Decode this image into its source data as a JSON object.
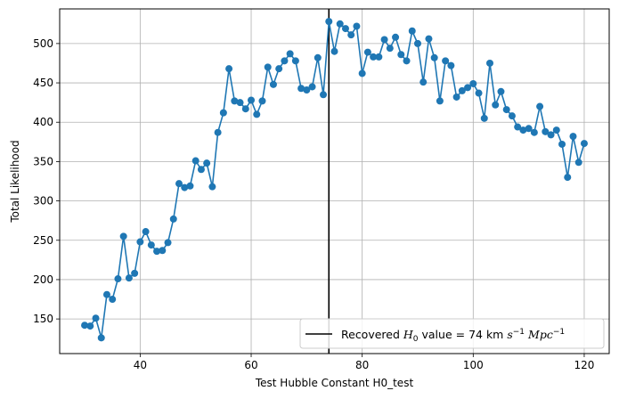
{
  "colors": {
    "series": "#1f77b4",
    "vline": "#000000",
    "grid": "#b0b0b0",
    "background": "#ffffff"
  },
  "chart_data": {
    "type": "line",
    "title": "",
    "xlabel": "Test Hubble Constant H0_test",
    "ylabel": "Total Likelihood",
    "xlim": [
      25.5,
      124.5
    ],
    "ylim": [
      106,
      544
    ],
    "xticks": [
      40,
      60,
      80,
      100,
      120
    ],
    "yticks": [
      150,
      200,
      250,
      300,
      350,
      400,
      450,
      500
    ],
    "grid": true,
    "legend_position": "lower-right",
    "vline": {
      "x": 74,
      "label_prefix": "Recovered ",
      "label_symbol": "H",
      "label_symbol_sub": "0",
      "label_middle": " value = 74 km ",
      "label_unit1": "s",
      "label_exp1": "−1",
      "label_unit2": "Mpc",
      "label_exp2": "−1"
    },
    "series": [
      {
        "marker": "circle",
        "x": [
          30,
          31,
          32,
          33,
          34,
          35,
          36,
          37,
          38,
          39,
          40,
          41,
          42,
          43,
          44,
          45,
          46,
          47,
          48,
          49,
          50,
          51,
          52,
          53,
          54,
          55,
          56,
          57,
          58,
          59,
          60,
          61,
          62,
          63,
          64,
          65,
          66,
          67,
          68,
          69,
          70,
          71,
          72,
          73,
          74,
          75,
          76,
          77,
          78,
          79,
          80,
          81,
          82,
          83,
          84,
          85,
          86,
          87,
          88,
          89,
          90,
          91,
          92,
          93,
          94,
          95,
          96,
          97,
          98,
          99,
          100,
          101,
          102,
          103,
          104,
          105,
          106,
          107,
          108,
          109,
          110,
          111,
          112,
          113,
          114,
          115,
          116,
          117,
          118,
          119,
          120
        ],
        "y": [
          142,
          141,
          151,
          126,
          181,
          175,
          201,
          255,
          202,
          208,
          248,
          261,
          244,
          236,
          237,
          247,
          277,
          322,
          317,
          319,
          351,
          340,
          348,
          318,
          387,
          412,
          468,
          427,
          425,
          417,
          428,
          410,
          427,
          470,
          448,
          468,
          478,
          487,
          478,
          443,
          441,
          445,
          482,
          435,
          528,
          490,
          525,
          519,
          511,
          522,
          462,
          489,
          483,
          483,
          505,
          494,
          508,
          486,
          478,
          516,
          500,
          451,
          506,
          482,
          427,
          478,
          472,
          432,
          440,
          444,
          449,
          437,
          405,
          475,
          422,
          439,
          416,
          408,
          394,
          390,
          392,
          387,
          420,
          388,
          384,
          390,
          372,
          330,
          382,
          349,
          373
        ]
      }
    ]
  }
}
